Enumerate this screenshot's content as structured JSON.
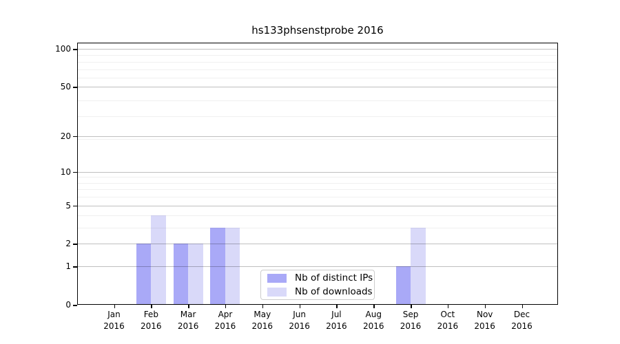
{
  "title": "hs133phsenstprobe 2016",
  "colors": {
    "distinct_ips_bar": "#a9a9f7",
    "downloads_bar": "#d9d9f9",
    "major_grid": "#bfbfbf",
    "minor_grid": "#f1f1f1",
    "axis_spine": "#000000"
  },
  "chart_data": {
    "type": "bar",
    "title": "hs133phsenstprobe 2016",
    "categories": [
      "Jan 2016",
      "Feb 2016",
      "Mar 2016",
      "Apr 2016",
      "May 2016",
      "Jun 2016",
      "Jul 2016",
      "Aug 2016",
      "Sep 2016",
      "Oct 2016",
      "Nov 2016",
      "Dec 2016"
    ],
    "series": [
      {
        "name": "Nb of distinct IPs",
        "color": "#a9a9f7",
        "values": [
          0,
          2,
          2,
          3,
          0,
          0,
          0,
          0,
          1,
          0,
          0,
          0
        ]
      },
      {
        "name": "Nb of downloads",
        "color": "#d9d9f9",
        "values": [
          0,
          4,
          2,
          3,
          0,
          0,
          0,
          0,
          3,
          0,
          0,
          0
        ]
      }
    ],
    "xlabel": "",
    "ylabel": "",
    "yscale": "log1p",
    "ylim": [
      0,
      112
    ],
    "yticks": [
      0,
      1,
      2,
      5,
      10,
      20,
      50,
      100
    ],
    "minor_gridlines": [
      3,
      4,
      6,
      7,
      8,
      9,
      19,
      29,
      39,
      59,
      69,
      79,
      89
    ],
    "grid": true,
    "legend_position": "lower-center"
  },
  "legend": {
    "items": [
      {
        "label": "Nb of distinct IPs"
      },
      {
        "label": "Nb of downloads"
      }
    ]
  }
}
